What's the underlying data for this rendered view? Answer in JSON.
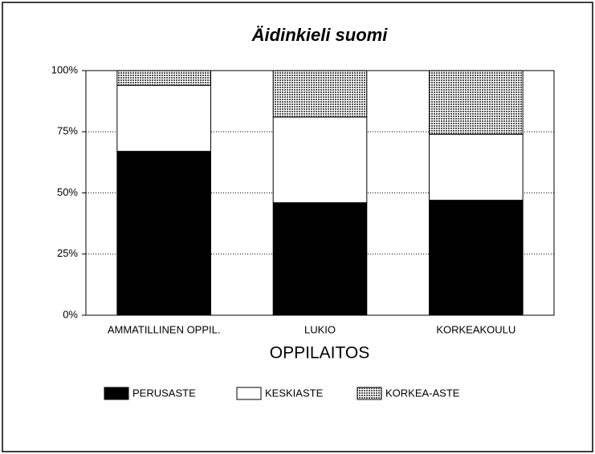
{
  "chart_data": {
    "type": "stacked_bar",
    "title": "Äidinkieli suomi",
    "xlabel": "OPPILAITOS",
    "categories": [
      "AMMATILLINEN OPPIL.",
      "LUKIO",
      "KORKEAKOULU"
    ],
    "series": [
      {
        "name": "PERUSASTE",
        "color": "#000000",
        "values": [
          67,
          46,
          47
        ]
      },
      {
        "name": "KESKIASTE",
        "color": "#ffffff",
        "values": [
          27,
          35,
          27
        ]
      },
      {
        "name": "KORKEA-ASTE",
        "color": "#555555",
        "pattern": "dotted",
        "values": [
          6,
          19,
          26
        ]
      }
    ],
    "ylim": [
      0,
      100
    ],
    "yticks": [
      {
        "value": 0,
        "label": "0%"
      },
      {
        "value": 25,
        "label": "25%"
      },
      {
        "value": 50,
        "label": "50%"
      },
      {
        "value": 75,
        "label": "75%"
      },
      {
        "value": 100,
        "label": "100%"
      }
    ],
    "grid": true,
    "legend": "bottom"
  }
}
